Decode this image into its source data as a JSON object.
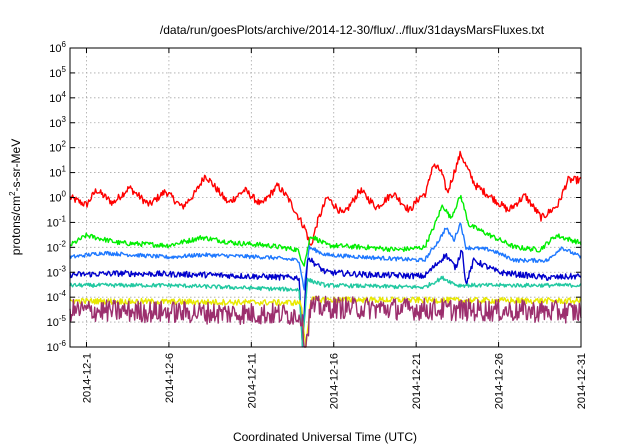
{
  "chart_data": {
    "type": "line",
    "title": "/data/run/goesPlots/archive/2014-12-30/flux/../flux/31daysMarsFluxes.txt",
    "xlabel": "Coordinated Universal Time (UTC)",
    "ylabel": {
      "prefix": "protons/cm",
      "sup": "2",
      "suffix": "-s-sr-MeV"
    },
    "yscale": "log",
    "ylim_exp": [
      -6,
      6
    ],
    "yticks": [
      {
        "base": "10",
        "exp": "-6"
      },
      {
        "base": "10",
        "exp": "-5"
      },
      {
        "base": "10",
        "exp": "-4"
      },
      {
        "base": "10",
        "exp": "-3"
      },
      {
        "base": "10",
        "exp": "-2"
      },
      {
        "base": "10",
        "exp": "-1"
      },
      {
        "base": "10",
        "exp": "0"
      },
      {
        "base": "10",
        "exp": "1"
      },
      {
        "base": "10",
        "exp": "2"
      },
      {
        "base": "10",
        "exp": "3"
      },
      {
        "base": "10",
        "exp": "4"
      },
      {
        "base": "10",
        "exp": "5"
      },
      {
        "base": "10",
        "exp": "6"
      }
    ],
    "xlim": [
      "2014-11-30",
      "2014-12-31"
    ],
    "xticks": [
      "2014-12-1",
      "2014-12-6",
      "2014-12-11",
      "2014-12-16",
      "2014-12-21",
      "2014-12-26",
      "2014-12-31"
    ],
    "xtick_days": [
      1,
      6,
      11,
      16,
      21,
      26,
      31
    ],
    "xlim_days": [
      0,
      31
    ],
    "grid": true,
    "series": [
      {
        "color": "#ff0000",
        "baseline": 1.0,
        "noise": 0.15,
        "anchors": [
          [
            0,
            1.0
          ],
          [
            1,
            0.5
          ],
          [
            1.6,
            2.0
          ],
          [
            2.6,
            0.6
          ],
          [
            3.6,
            2.5
          ],
          [
            4.8,
            0.5
          ],
          [
            5.8,
            1.8
          ],
          [
            6.8,
            0.4
          ],
          [
            7.6,
            1.5
          ],
          [
            8.2,
            8.0
          ],
          [
            9.6,
            0.6
          ],
          [
            10.6,
            2.0
          ],
          [
            11.6,
            0.5
          ],
          [
            12.6,
            3.0
          ],
          [
            13.2,
            1.0
          ],
          [
            13.8,
            0.2
          ],
          [
            14.3,
            0.05
          ],
          [
            14.6,
            0.01
          ],
          [
            15.0,
            0.1
          ],
          [
            15.6,
            1.0
          ],
          [
            16.6,
            0.2
          ],
          [
            17.6,
            2.0
          ],
          [
            18.6,
            0.4
          ],
          [
            19.6,
            1.5
          ],
          [
            20.6,
            0.3
          ],
          [
            21.2,
            1.0
          ],
          [
            21.6,
            1.5
          ],
          [
            22.0,
            20.0
          ],
          [
            22.5,
            12.0
          ],
          [
            22.9,
            1.5
          ],
          [
            23.3,
            10.0
          ],
          [
            23.7,
            60.0
          ],
          [
            24.0,
            20.0
          ],
          [
            24.6,
            3.0
          ],
          [
            25.6,
            1.0
          ],
          [
            26.6,
            0.3
          ],
          [
            27.6,
            1.2
          ],
          [
            28.6,
            0.15
          ],
          [
            29.6,
            0.5
          ],
          [
            30.2,
            5.0
          ],
          [
            31,
            5.0
          ]
        ]
      },
      {
        "color": "#00ee00",
        "baseline": 0.015,
        "noise": 0.1,
        "anchors": [
          [
            0,
            0.012
          ],
          [
            1,
            0.03
          ],
          [
            3,
            0.015
          ],
          [
            6,
            0.012
          ],
          [
            8,
            0.025
          ],
          [
            10,
            0.015
          ],
          [
            12,
            0.012
          ],
          [
            13.8,
            0.008
          ],
          [
            14.2,
            0.002
          ],
          [
            14.6,
            0.03
          ],
          [
            15.6,
            0.012
          ],
          [
            18,
            0.01
          ],
          [
            20,
            0.008
          ],
          [
            21.5,
            0.01
          ],
          [
            22,
            0.05
          ],
          [
            22.6,
            0.5
          ],
          [
            23.1,
            0.15
          ],
          [
            23.7,
            1.2
          ],
          [
            24.2,
            0.08
          ],
          [
            25.5,
            0.03
          ],
          [
            27,
            0.01
          ],
          [
            28.5,
            0.008
          ],
          [
            29.5,
            0.03
          ],
          [
            31,
            0.015
          ]
        ]
      },
      {
        "color": "#1e78ff",
        "baseline": 0.004,
        "noise": 0.08,
        "anchors": [
          [
            0,
            0.004
          ],
          [
            2,
            0.006
          ],
          [
            6,
            0.004
          ],
          [
            8,
            0.005
          ],
          [
            12,
            0.004
          ],
          [
            13.9,
            0.003
          ],
          [
            14.2,
            0.0002
          ],
          [
            14.5,
            0.01
          ],
          [
            15.5,
            0.005
          ],
          [
            18,
            0.004
          ],
          [
            21.5,
            0.003
          ],
          [
            22.4,
            0.02
          ],
          [
            22.8,
            0.06
          ],
          [
            23.3,
            0.02
          ],
          [
            23.7,
            0.1
          ],
          [
            24.0,
            0.01
          ],
          [
            25.5,
            0.008
          ],
          [
            27,
            0.003
          ],
          [
            29,
            0.003
          ],
          [
            29.8,
            0.01
          ],
          [
            31,
            0.004
          ]
        ]
      },
      {
        "color": "#0000cc",
        "baseline": 0.0008,
        "noise": 0.12,
        "anchors": [
          [
            0,
            0.0008
          ],
          [
            3,
            0.0009
          ],
          [
            8,
            0.0008
          ],
          [
            13.9,
            0.0006
          ],
          [
            14.1,
            1e-06
          ],
          [
            14.4,
            0.004
          ],
          [
            15.5,
            0.001
          ],
          [
            18,
            0.0008
          ],
          [
            21.5,
            0.0007
          ],
          [
            22.2,
            0.002
          ],
          [
            22.8,
            0.005
          ],
          [
            23.4,
            0.0015
          ],
          [
            23.8,
            0.01
          ],
          [
            24.0,
            0.0003
          ],
          [
            24.5,
            0.003
          ],
          [
            26,
            0.001
          ],
          [
            29,
            0.0006
          ],
          [
            31,
            0.0007
          ]
        ]
      },
      {
        "color": "#20c8a0",
        "baseline": 0.0003,
        "noise": 0.08,
        "anchors": [
          [
            0,
            0.0003
          ],
          [
            6,
            0.0003
          ],
          [
            13.9,
            0.0002
          ],
          [
            14.1,
            1e-06
          ],
          [
            14.4,
            0.0005
          ],
          [
            15.5,
            0.0003
          ],
          [
            21.5,
            0.00025
          ],
          [
            22.6,
            0.0006
          ],
          [
            23.5,
            0.0003
          ],
          [
            26,
            0.0003
          ],
          [
            31,
            0.0003
          ]
        ]
      },
      {
        "color": "#e8e800",
        "baseline": 7e-05,
        "noise": 0.12,
        "anchors": [
          [
            0,
            7e-05
          ],
          [
            14,
            6e-05
          ],
          [
            14.3,
            1e-06
          ],
          [
            14.6,
            8e-05
          ],
          [
            31,
            7e-05
          ]
        ]
      },
      {
        "color": "#9c2f6e",
        "baseline": 3e-05,
        "noise": 0.45,
        "anchors": [
          [
            0,
            3e-05
          ],
          [
            14,
            2e-05
          ],
          [
            14.3,
            1e-06
          ],
          [
            14.6,
            4e-05
          ],
          [
            31,
            2.5e-05
          ]
        ]
      }
    ]
  }
}
